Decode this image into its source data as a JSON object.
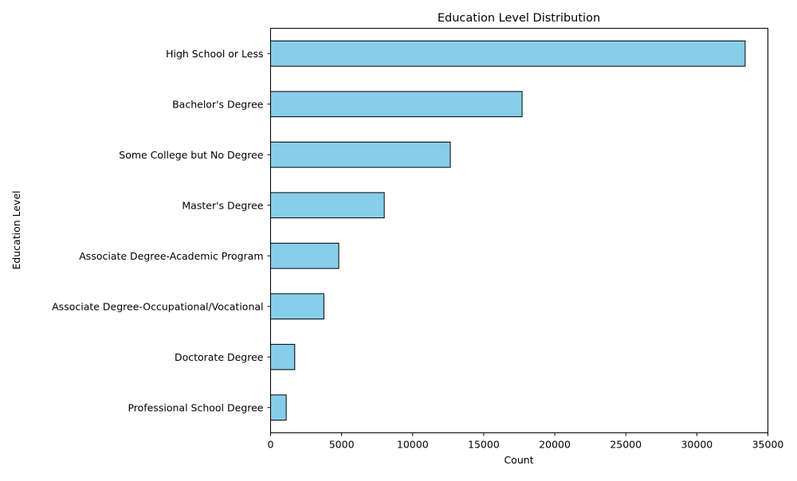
{
  "chart_data": {
    "type": "bar",
    "orientation": "horizontal",
    "title": "Education Level Distribution",
    "xlabel": "Count",
    "ylabel": "Education Level",
    "categories": [
      "High School or Less",
      "Bachelor's Degree",
      "Some College but No Degree",
      "Master's Degree",
      "Associate Degree-Academic Program",
      "Associate Degree-Occupational/Vocational",
      "Doctorate Degree",
      "Professional School Degree"
    ],
    "values": [
      33400,
      17700,
      12650,
      8000,
      4800,
      3750,
      1700,
      1100
    ],
    "xlim": [
      0,
      35000
    ],
    "xticks": [
      0,
      5000,
      10000,
      15000,
      20000,
      25000,
      30000,
      35000
    ],
    "xtick_labels": [
      "0",
      "5000",
      "10000",
      "15000",
      "20000",
      "25000",
      "30000",
      "35000"
    ],
    "grid": false,
    "bar_color": "#87ceeb",
    "edge_color": "#000000"
  }
}
